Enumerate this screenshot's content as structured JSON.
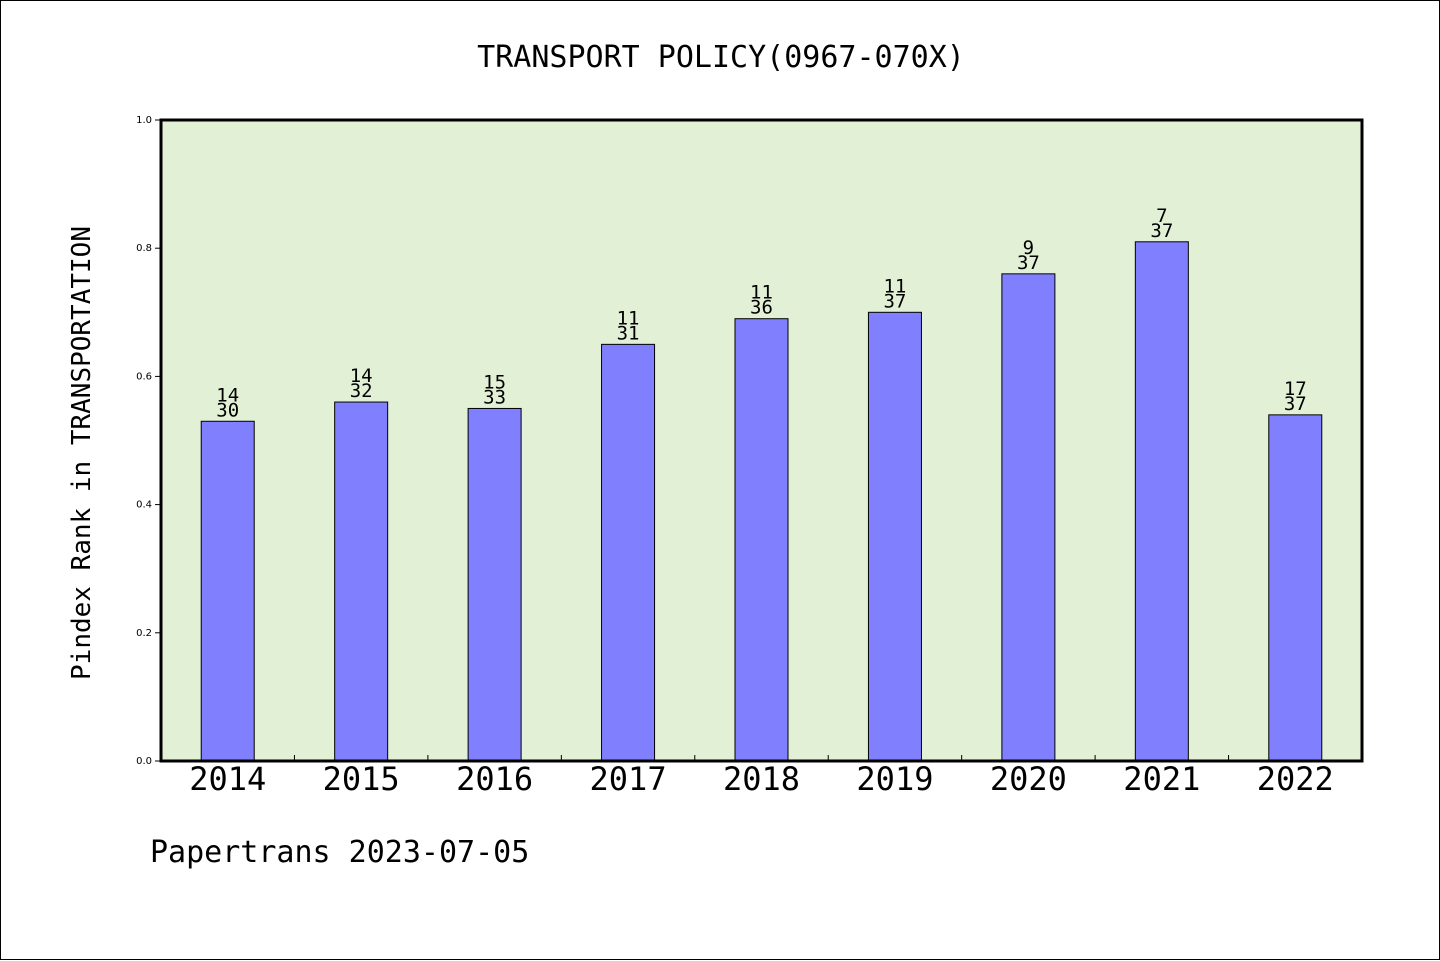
{
  "chart_data": {
    "type": "bar",
    "title": "TRANSPORT POLICY(0967-070X)",
    "xlabel": "",
    "ylabel": "Pindex Rank in TRANSPORTATION",
    "ylim": [
      0,
      1.0
    ],
    "yticks": [
      "0.0",
      "0.2",
      "0.4",
      "0.6",
      "0.8",
      "1.0"
    ],
    "categories": [
      "2014",
      "2015",
      "2016",
      "2017",
      "2018",
      "2019",
      "2020",
      "2021",
      "2022"
    ],
    "values": [
      0.53,
      0.56,
      0.55,
      0.65,
      0.69,
      0.7,
      0.76,
      0.81,
      0.54
    ],
    "rank_labels": [
      {
        "rank": "14",
        "total": "30"
      },
      {
        "rank": "14",
        "total": "32"
      },
      {
        "rank": "15",
        "total": "33"
      },
      {
        "rank": "11",
        "total": "31"
      },
      {
        "rank": "11",
        "total": "36"
      },
      {
        "rank": "11",
        "total": "37"
      },
      {
        "rank": "9",
        "total": "37"
      },
      {
        "rank": "7",
        "total": "37"
      },
      {
        "rank": "17",
        "total": "37"
      }
    ],
    "grid": false,
    "colors": {
      "plot_background": "#e2f0d6",
      "bar_fill": "#8080ff",
      "bar_edge": "#000000"
    }
  },
  "footer": "Papertrans 2023-07-05"
}
